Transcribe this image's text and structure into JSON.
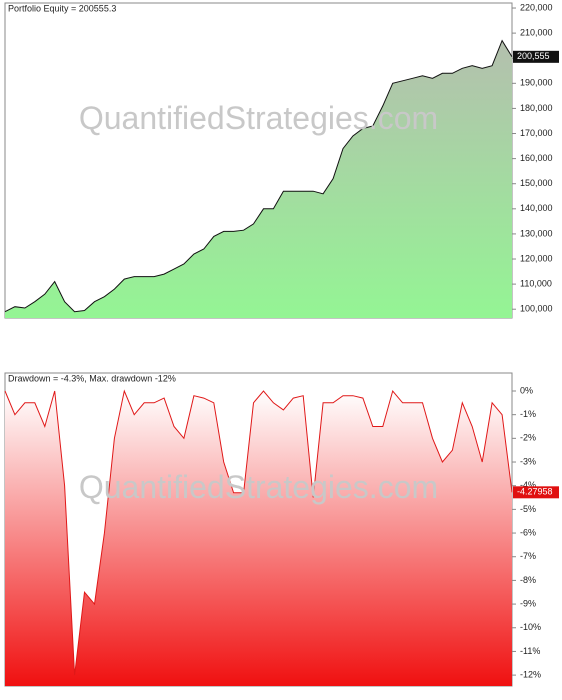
{
  "chart_data": [
    {
      "type": "area",
      "title": "Portfolio Equity = 200555.3",
      "watermark": "QuantifiedStrategies.com",
      "color": "#111111",
      "fill_top": "#b4bfae",
      "fill_bottom": "#94f594",
      "label_bg": "#111111",
      "values": [
        99000,
        101000,
        100500,
        103000,
        106000,
        111000,
        103000,
        99000,
        99500,
        103000,
        105000,
        108000,
        112000,
        113000,
        113000,
        113000,
        114000,
        116000,
        118000,
        122000,
        124000,
        129000,
        131000,
        131000,
        131500,
        134000,
        140000,
        140000,
        147000,
        147000,
        147000,
        147000,
        146000,
        152000,
        164000,
        169000,
        172000,
        173000,
        181000,
        190000,
        191000,
        192000,
        193000,
        192000,
        194000,
        194000,
        196000,
        197000,
        196000,
        197000,
        207000,
        200555.3
      ],
      "value_labels": [
        null,
        null,
        null,
        null,
        null,
        null,
        null,
        null,
        null,
        null,
        null,
        null,
        null,
        null,
        null,
        null,
        null,
        null,
        null,
        null,
        null,
        null,
        null,
        null,
        null,
        null,
        null,
        null,
        null,
        null,
        null,
        null,
        null,
        null,
        null,
        null,
        null,
        null,
        null,
        null,
        null,
        null,
        null,
        null,
        null,
        null,
        null,
        null,
        null,
        null,
        null,
        "200,555"
      ],
      "ylim": [
        96500,
        222000
      ],
      "yticks": [
        {
          "value": 100000,
          "label": "100,000"
        },
        {
          "value": 110000,
          "label": "110,000"
        },
        {
          "value": 120000,
          "label": "120,000"
        },
        {
          "value": 130000,
          "label": "130,000"
        },
        {
          "value": 140000,
          "label": "140,000"
        },
        {
          "value": 150000,
          "label": "150,000"
        },
        {
          "value": 160000,
          "label": "160,000"
        },
        {
          "value": 170000,
          "label": "170,000"
        },
        {
          "value": 180000,
          "label": "180,000"
        },
        {
          "value": 190000,
          "label": "190,000"
        },
        {
          "value": 200000,
          "label": "200,000"
        },
        {
          "value": 210000,
          "label": "210,000"
        },
        {
          "value": 220000,
          "label": "220,000"
        }
      ]
    },
    {
      "type": "area",
      "title": "Drawdown = -4.3%, Max. drawdown -12%",
      "watermark": "QuantifiedStrategies.com",
      "color": "#e01818",
      "fill_top": "#ffffff",
      "fill_bottom": "#f01010",
      "label_bg": "#e01010",
      "values": [
        0,
        -1,
        -0.5,
        -0.5,
        -1.5,
        0,
        -4,
        -12,
        -8.5,
        -9,
        -6,
        -2,
        0,
        -1,
        -0.5,
        -0.5,
        -0.3,
        -1.5,
        -2,
        -0.2,
        -0.3,
        -0.5,
        -3,
        -4.3,
        -4.3,
        -0.5,
        0,
        -0.5,
        -0.8,
        -0.3,
        -0.2,
        -4.5,
        -0.5,
        -0.5,
        -0.2,
        -0.2,
        -0.3,
        -1.5,
        -1.5,
        0,
        -0.5,
        -0.5,
        -0.5,
        -2,
        -3,
        -2.5,
        -0.5,
        -1.5,
        -3,
        -0.5,
        -1,
        -4.27958
      ],
      "value_labels": [
        null,
        null,
        null,
        null,
        null,
        null,
        null,
        null,
        null,
        null,
        null,
        null,
        null,
        null,
        null,
        null,
        null,
        null,
        null,
        null,
        null,
        null,
        null,
        null,
        null,
        null,
        null,
        null,
        null,
        null,
        null,
        null,
        null,
        null,
        null,
        null,
        null,
        null,
        null,
        null,
        null,
        null,
        null,
        null,
        null,
        null,
        null,
        null,
        null,
        null,
        null,
        "-4.27958"
      ],
      "ylim": [
        -12.46,
        0.76
      ],
      "yticks": [
        {
          "value": 0,
          "label": "0%"
        },
        {
          "value": -1,
          "label": "-1%"
        },
        {
          "value": -2,
          "label": "-2%"
        },
        {
          "value": -3,
          "label": "-3%"
        },
        {
          "value": -4,
          "label": "-4%"
        },
        {
          "value": -5,
          "label": "-5%"
        },
        {
          "value": -6,
          "label": "-6%"
        },
        {
          "value": -7,
          "label": "-7%"
        },
        {
          "value": -8,
          "label": "-8%"
        },
        {
          "value": -9,
          "label": "-9%"
        },
        {
          "value": -10,
          "label": "-10%"
        },
        {
          "value": -11,
          "label": "-11%"
        },
        {
          "value": -12,
          "label": "-12%"
        }
      ]
    }
  ]
}
